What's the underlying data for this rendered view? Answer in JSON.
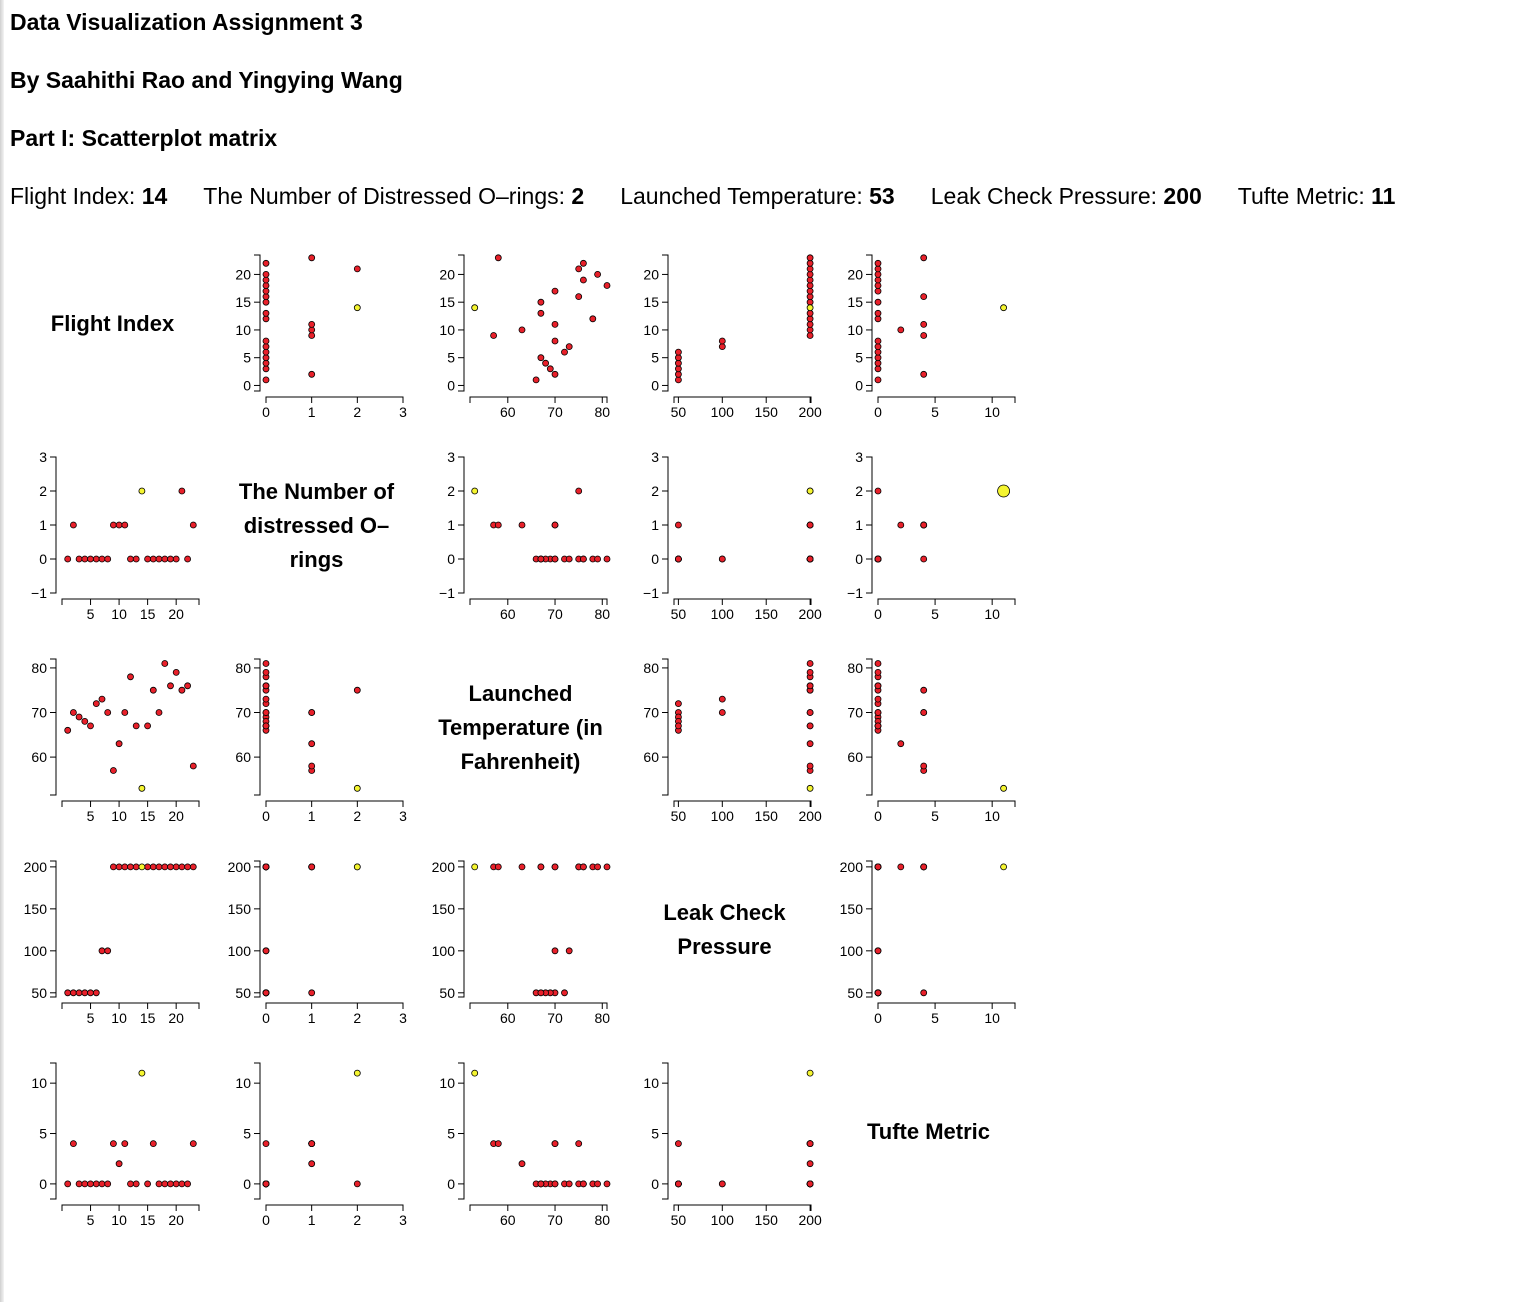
{
  "page": {
    "title": "Data Visualization Assignment 3",
    "byline": "By Saahithi Rao and Yingying Wang",
    "part": "Part I: Scatterplot matrix"
  },
  "selection": [
    {
      "label": "Flight Index: ",
      "value": "14"
    },
    {
      "label": "The Number of Distressed O–rings: ",
      "value": "2"
    },
    {
      "label": "Launched Temperature: ",
      "value": "53"
    },
    {
      "label": "Leak Check Pressure: ",
      "value": "200"
    },
    {
      "label": "Tufte Metric: ",
      "value": "11"
    }
  ],
  "colors": {
    "point": "#e8202a",
    "selected": "#f5f530",
    "stroke": "#000000"
  },
  "chart_data": {
    "type": "scatter",
    "selected_index": 13,
    "variables": [
      {
        "key": "flight",
        "diag": [
          "Flight Index"
        ],
        "ticks": [
          5,
          10,
          15,
          20
        ],
        "ticks_y": [
          0,
          5,
          10,
          15,
          20
        ],
        "range": [
          0,
          23
        ]
      },
      {
        "key": "orings",
        "diag": [
          "The Number of",
          "distressed O–",
          "rings"
        ],
        "ticks": [
          0,
          1,
          2,
          3
        ],
        "ticks_y": [
          -1,
          0,
          1,
          2,
          3
        ],
        "range": [
          -1,
          3
        ]
      },
      {
        "key": "temp",
        "diag": [
          "Launched",
          "Temperature (in",
          "Fahrenheit)"
        ],
        "ticks": [
          60,
          70,
          80
        ],
        "ticks_y": [
          60,
          70,
          80
        ],
        "range": [
          52,
          81
        ]
      },
      {
        "key": "pressure",
        "diag": [
          "Leak Check",
          "Pressure"
        ],
        "ticks": [
          50,
          100,
          150,
          200
        ],
        "ticks_y": [
          50,
          100,
          150,
          200
        ],
        "range": [
          45,
          200
        ]
      },
      {
        "key": "tufte",
        "diag": [
          "Tufte Metric"
        ],
        "ticks": [
          0,
          5,
          10
        ],
        "ticks_y": [
          0,
          5,
          10
        ],
        "range": [
          0,
          11
        ]
      }
    ],
    "points": [
      {
        "flight": 1,
        "orings": 0,
        "temp": 66,
        "pressure": 50,
        "tufte": 0
      },
      {
        "flight": 2,
        "orings": 1,
        "temp": 70,
        "pressure": 50,
        "tufte": 4
      },
      {
        "flight": 3,
        "orings": 0,
        "temp": 69,
        "pressure": 50,
        "tufte": 0
      },
      {
        "flight": 4,
        "orings": 0,
        "temp": 68,
        "pressure": 50,
        "tufte": 0
      },
      {
        "flight": 5,
        "orings": 0,
        "temp": 67,
        "pressure": 50,
        "tufte": 0
      },
      {
        "flight": 6,
        "orings": 0,
        "temp": 72,
        "pressure": 50,
        "tufte": 0
      },
      {
        "flight": 7,
        "orings": 0,
        "temp": 73,
        "pressure": 100,
        "tufte": 0
      },
      {
        "flight": 8,
        "orings": 0,
        "temp": 70,
        "pressure": 100,
        "tufte": 0
      },
      {
        "flight": 9,
        "orings": 1,
        "temp": 57,
        "pressure": 200,
        "tufte": 4
      },
      {
        "flight": 10,
        "orings": 1,
        "temp": 63,
        "pressure": 200,
        "tufte": 2
      },
      {
        "flight": 11,
        "orings": 1,
        "temp": 70,
        "pressure": 200,
        "tufte": 4
      },
      {
        "flight": 12,
        "orings": 0,
        "temp": 78,
        "pressure": 200,
        "tufte": 0
      },
      {
        "flight": 13,
        "orings": 0,
        "temp": 67,
        "pressure": 200,
        "tufte": 0
      },
      {
        "flight": 14,
        "orings": 2,
        "temp": 53,
        "pressure": 200,
        "tufte": 11
      },
      {
        "flight": 15,
        "orings": 0,
        "temp": 67,
        "pressure": 200,
        "tufte": 0
      },
      {
        "flight": 16,
        "orings": 0,
        "temp": 75,
        "pressure": 200,
        "tufte": 4
      },
      {
        "flight": 17,
        "orings": 0,
        "temp": 70,
        "pressure": 200,
        "tufte": 0
      },
      {
        "flight": 18,
        "orings": 0,
        "temp": 81,
        "pressure": 200,
        "tufte": 0
      },
      {
        "flight": 19,
        "orings": 0,
        "temp": 76,
        "pressure": 200,
        "tufte": 0
      },
      {
        "flight": 20,
        "orings": 0,
        "temp": 79,
        "pressure": 200,
        "tufte": 0
      },
      {
        "flight": 21,
        "orings": 2,
        "temp": 75,
        "pressure": 200,
        "tufte": 0
      },
      {
        "flight": 22,
        "orings": 0,
        "temp": 76,
        "pressure": 200,
        "tufte": 0
      },
      {
        "flight": 23,
        "orings": 1,
        "temp": 58,
        "pressure": 200,
        "tufte": 4
      }
    ]
  }
}
